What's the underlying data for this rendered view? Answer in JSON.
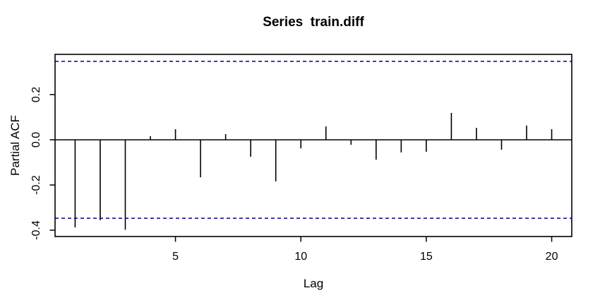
{
  "chart_data": {
    "type": "bar",
    "variant": "pacf-stem-plot",
    "title": "Series  train.diff",
    "xlabel": "Lag",
    "ylabel": "Partial ACF",
    "x": [
      1,
      2,
      3,
      4,
      5,
      6,
      7,
      8,
      9,
      10,
      11,
      12,
      13,
      14,
      15,
      16,
      17,
      18,
      19,
      20
    ],
    "values": [
      -0.388,
      -0.356,
      -0.398,
      0.016,
      0.047,
      -0.166,
      0.025,
      -0.075,
      -0.184,
      -0.038,
      0.059,
      -0.022,
      -0.088,
      -0.056,
      -0.053,
      0.119,
      0.053,
      -0.044,
      0.063,
      0.047
    ],
    "confidence_bounds": {
      "upper": 0.347,
      "lower": -0.347,
      "line_style": "dashed"
    },
    "xticks": {
      "values": [
        5,
        10,
        15,
        20
      ],
      "labels": [
        "5",
        "10",
        "15",
        "20"
      ]
    },
    "yticks": {
      "values": [
        0.2,
        0.0,
        -0.2,
        -0.4
      ],
      "labels": [
        "0.2",
        "0.0",
        "-0.2",
        "-0.4"
      ]
    },
    "xlim": [
      0.2,
      20.8
    ],
    "ylim": [
      -0.428,
      0.378
    ],
    "grid": false,
    "legend_position": "none",
    "colors": {
      "bars": "#000000",
      "axis": "#000000",
      "text": "#000000",
      "ci_lines": "#00008B",
      "background": "#FFFFFF"
    }
  }
}
